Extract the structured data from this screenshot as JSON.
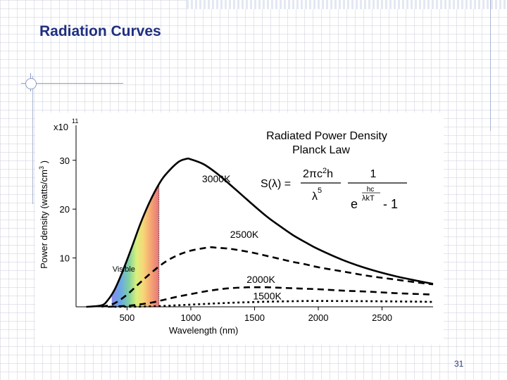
{
  "slide": {
    "title": "Radiation Curves",
    "page_number": "31"
  },
  "colors": {
    "title": "#1f2f80",
    "curve": "#000000"
  },
  "chart_data": {
    "type": "line",
    "title": "Radiated Power Density",
    "subtitle": "Planck Law",
    "xlabel": "Wavelength (nm)",
    "ylabel": "Power density (watts/cm",
    "ylabel_superscript": "3",
    "ylabel_suffix": ")",
    "y_multiplier": "x10",
    "y_multiplier_exponent": "11",
    "xlim": [
      100,
      2900
    ],
    "ylim": [
      0,
      34
    ],
    "x_ticks": [
      500,
      1000,
      1500,
      2000,
      2500
    ],
    "y_ticks": [
      10,
      20,
      30
    ],
    "grid": false,
    "visible_band": {
      "label": "Visible",
      "x_range": [
        380,
        750
      ]
    },
    "series": [
      {
        "name": "3000K",
        "style": "solid",
        "x": [
          180,
          300,
          350,
          400,
          450,
          500,
          550,
          600,
          650,
          700,
          750,
          800,
          900,
          966,
          1000,
          1100,
          1200,
          1300,
          1400,
          1500,
          1600,
          1700,
          1800,
          1900,
          2000,
          2200,
          2400,
          2600,
          2800,
          2900
        ],
        "y": [
          0,
          0.3,
          1.4,
          3.4,
          6.3,
          9.6,
          13.1,
          16.7,
          19.9,
          22.7,
          25.1,
          27.0,
          29.6,
          30.3,
          30.2,
          29.2,
          27.4,
          25.2,
          22.9,
          20.6,
          18.4,
          16.5,
          14.7,
          13.2,
          11.8,
          9.5,
          7.7,
          6.3,
          5.2,
          4.7
        ]
      },
      {
        "name": "2500K",
        "style": "dashed",
        "x": [
          300,
          400,
          500,
          600,
          700,
          800,
          900,
          1000,
          1100,
          1159,
          1200,
          1300,
          1400,
          1500,
          1600,
          1700,
          1800,
          1900,
          2000,
          2200,
          2400,
          2600,
          2800,
          2900
        ],
        "y": [
          0,
          0.7,
          2.5,
          4.9,
          7.2,
          9.2,
          10.6,
          11.5,
          12.0,
          12.2,
          12.1,
          11.9,
          11.5,
          11.0,
          10.4,
          9.8,
          9.2,
          8.7,
          8.1,
          7.2,
          6.3,
          5.6,
          4.9,
          4.6
        ]
      },
      {
        "name": "2000K",
        "style": "dashed",
        "x": [
          350,
          500,
          600,
          700,
          800,
          900,
          1000,
          1100,
          1200,
          1300,
          1449,
          1500,
          1600,
          1700,
          1800,
          1900,
          2000,
          2200,
          2400,
          2600,
          2800,
          2900
        ],
        "y": [
          0,
          0.2,
          0.5,
          0.9,
          1.5,
          2.1,
          2.6,
          3.1,
          3.5,
          3.8,
          4.0,
          4.0,
          4.0,
          3.9,
          3.8,
          3.7,
          3.6,
          3.3,
          3.1,
          2.8,
          2.6,
          2.5
        ]
      },
      {
        "name": "1500K",
        "style": "dotted",
        "x": [
          400,
          600,
          800,
          1000,
          1200,
          1400,
          1600,
          1800,
          1932,
          2000,
          2200,
          2400,
          2600,
          2800,
          2900
        ],
        "y": [
          0,
          0.05,
          0.2,
          0.45,
          0.7,
          0.9,
          1.05,
          1.15,
          1.2,
          1.2,
          1.18,
          1.15,
          1.1,
          1.05,
          1.0
        ]
      }
    ],
    "series_labels": [
      {
        "series": "3000K",
        "text": "3000K",
        "at": [
          1200,
          25.5
        ]
      },
      {
        "series": "2500K",
        "text": "2500K",
        "at": [
          1420,
          14.1
        ]
      },
      {
        "series": "2000K",
        "text": "2000K",
        "at": [
          1550,
          4.9
        ]
      },
      {
        "series": "1500K",
        "text": "1500K",
        "at": [
          1600,
          1.5
        ]
      }
    ],
    "formula": {
      "lhs": "S(λ) =",
      "num1_a": "2πc",
      "num1_sup": "2",
      "num1_b": "h",
      "den1_a": "λ",
      "den1_sup": "5",
      "num2": "1",
      "den2_exp_top": "hc",
      "den2_exp_bottom": "λkT",
      "den2_base": "e",
      "den2_minus": "- 1"
    }
  }
}
